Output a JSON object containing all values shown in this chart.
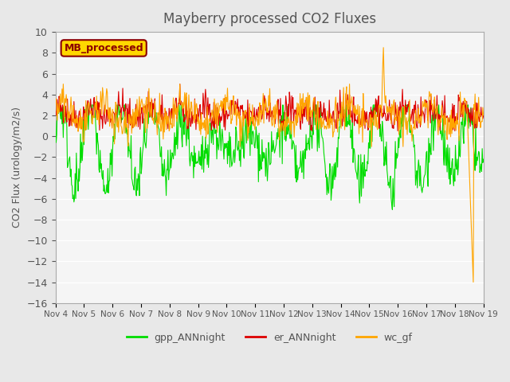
{
  "title": "Mayberry processed CO2 Fluxes",
  "ylabel": "CO2 Flux (urology/m2/s)",
  "ylim": [
    -16,
    10
  ],
  "yticks": [
    10,
    8,
    6,
    4,
    2,
    0,
    -2,
    -4,
    -6,
    -8,
    -10,
    -12,
    -14,
    -16
  ],
  "xlim_days": [
    0,
    15
  ],
  "x_tick_labels": [
    "Nov 4",
    "Nov 5",
    "Nov 6",
    "Nov 7",
    "Nov 8",
    "Nov 9",
    "Nov 10",
    "Nov 11",
    "Nov 12",
    "Nov 13",
    "Nov 14",
    "Nov 15",
    "Nov 16",
    "Nov 17",
    "Nov 18",
    "Nov 19"
  ],
  "legend_label": "MB_processed",
  "legend_box_color": "#FFD700",
  "legend_text_color": "#8B0000",
  "series_labels": [
    "gpp_ANNnight",
    "er_ANNnight",
    "wc_gf"
  ],
  "series_colors": [
    "#00DD00",
    "#DD0000",
    "#FFA500"
  ],
  "background_color": "#E8E8E8",
  "plot_bg_color": "#F5F5F5",
  "grid_color": "#FFFFFF",
  "title_color": "#555555",
  "axis_label_color": "#555555",
  "tick_label_color": "#555555"
}
